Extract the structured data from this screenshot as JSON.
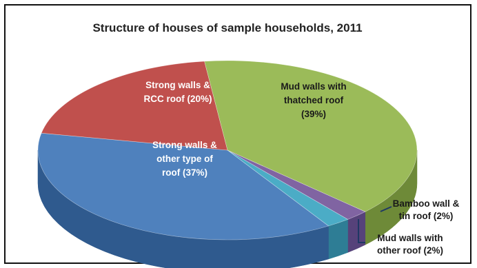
{
  "chart_data": {
    "type": "pie",
    "title": "Structure of houses of sample households, 2011",
    "slices": [
      {
        "label_lines": [
          "Mud walls with",
          "thatched roof",
          "(39%)"
        ],
        "value": 39,
        "color": "#9bbb59",
        "side": "#6e8a38"
      },
      {
        "label_lines": [
          "Bamboo wall &",
          "tin roof (2%)"
        ],
        "value": 2,
        "color": "#8064a2",
        "side": "#56427a"
      },
      {
        "label_lines": [
          "Mud walls with",
          "other roof (2%)"
        ],
        "value": 2,
        "color": "#4bacc6",
        "side": "#2e7d95"
      },
      {
        "label_lines": [
          "Strong walls &",
          "other type of",
          "roof (37%)"
        ],
        "value": 37,
        "color": "#4f81bd",
        "side": "#2f5a8e"
      },
      {
        "label_lines": [
          "Strong walls &",
          "RCC roof  (20%)"
        ],
        "value": 20,
        "color": "#c0504d",
        "side": "#8c2f2d"
      }
    ],
    "legend": "none",
    "style": "3d-exploded-labels"
  }
}
